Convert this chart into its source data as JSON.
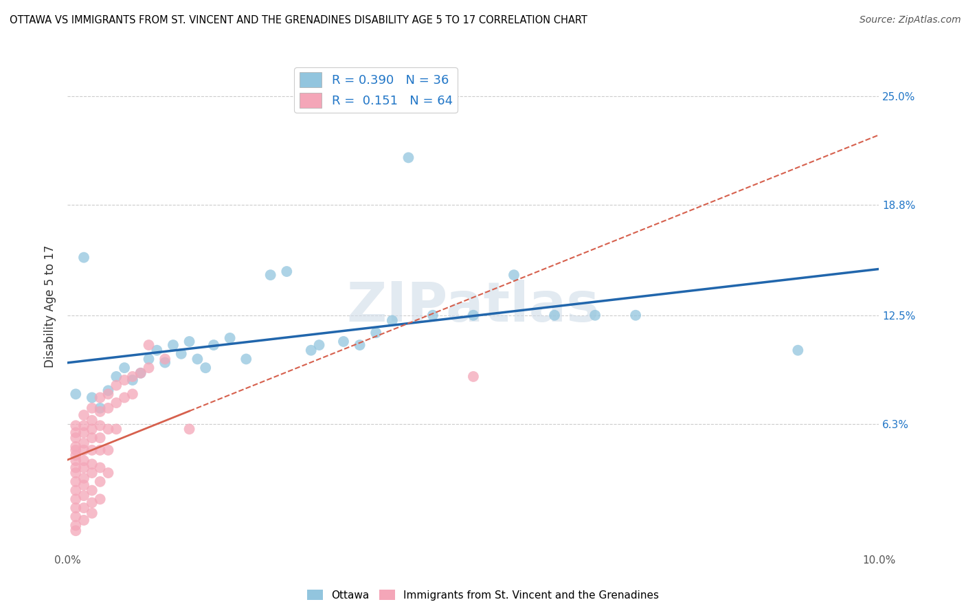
{
  "title": "OTTAWA VS IMMIGRANTS FROM ST. VINCENT AND THE GRENADINES DISABILITY AGE 5 TO 17 CORRELATION CHART",
  "source": "Source: ZipAtlas.com",
  "ylabel_label": "Disability Age 5 to 17",
  "ytick_labels": [
    "6.3%",
    "12.5%",
    "18.8%",
    "25.0%"
  ],
  "ytick_values": [
    0.063,
    0.125,
    0.188,
    0.25
  ],
  "xlim": [
    0.0,
    0.1
  ],
  "ylim": [
    -0.01,
    0.27
  ],
  "watermark": "ZIPatlas",
  "blue_color": "#92c5de",
  "pink_color": "#f4a6b8",
  "blue_line_color": "#2166ac",
  "pink_line_color": "#d6604d",
  "blue_R": 0.39,
  "blue_N": 36,
  "pink_R": 0.151,
  "pink_N": 64,
  "legend1_label": "Ottawa",
  "legend2_label": "Immigrants from St. Vincent and the Grenadines",
  "blue_points": [
    [
      0.001,
      0.08
    ],
    [
      0.003,
      0.078
    ],
    [
      0.004,
      0.072
    ],
    [
      0.005,
      0.082
    ],
    [
      0.006,
      0.09
    ],
    [
      0.007,
      0.095
    ],
    [
      0.008,
      0.088
    ],
    [
      0.009,
      0.092
    ],
    [
      0.01,
      0.1
    ],
    [
      0.011,
      0.105
    ],
    [
      0.012,
      0.098
    ],
    [
      0.013,
      0.108
    ],
    [
      0.014,
      0.103
    ],
    [
      0.015,
      0.11
    ],
    [
      0.016,
      0.1
    ],
    [
      0.017,
      0.095
    ],
    [
      0.018,
      0.108
    ],
    [
      0.02,
      0.112
    ],
    [
      0.022,
      0.1
    ],
    [
      0.025,
      0.148
    ],
    [
      0.027,
      0.15
    ],
    [
      0.03,
      0.105
    ],
    [
      0.031,
      0.108
    ],
    [
      0.034,
      0.11
    ],
    [
      0.036,
      0.108
    ],
    [
      0.038,
      0.115
    ],
    [
      0.04,
      0.122
    ],
    [
      0.042,
      0.215
    ],
    [
      0.045,
      0.125
    ],
    [
      0.05,
      0.125
    ],
    [
      0.055,
      0.148
    ],
    [
      0.06,
      0.125
    ],
    [
      0.065,
      0.125
    ],
    [
      0.07,
      0.125
    ],
    [
      0.09,
      0.105
    ],
    [
      0.002,
      0.158
    ]
  ],
  "pink_points": [
    [
      0.001,
      0.062
    ],
    [
      0.001,
      0.058
    ],
    [
      0.001,
      0.055
    ],
    [
      0.001,
      0.05
    ],
    [
      0.001,
      0.048
    ],
    [
      0.001,
      0.045
    ],
    [
      0.001,
      0.042
    ],
    [
      0.001,
      0.038
    ],
    [
      0.001,
      0.035
    ],
    [
      0.001,
      0.03
    ],
    [
      0.001,
      0.025
    ],
    [
      0.001,
      0.02
    ],
    [
      0.001,
      0.015
    ],
    [
      0.001,
      0.01
    ],
    [
      0.001,
      0.005
    ],
    [
      0.001,
      0.002
    ],
    [
      0.002,
      0.068
    ],
    [
      0.002,
      0.062
    ],
    [
      0.002,
      0.058
    ],
    [
      0.002,
      0.052
    ],
    [
      0.002,
      0.048
    ],
    [
      0.002,
      0.042
    ],
    [
      0.002,
      0.038
    ],
    [
      0.002,
      0.032
    ],
    [
      0.002,
      0.028
    ],
    [
      0.002,
      0.022
    ],
    [
      0.002,
      0.015
    ],
    [
      0.002,
      0.008
    ],
    [
      0.003,
      0.072
    ],
    [
      0.003,
      0.065
    ],
    [
      0.003,
      0.06
    ],
    [
      0.003,
      0.055
    ],
    [
      0.003,
      0.048
    ],
    [
      0.003,
      0.04
    ],
    [
      0.003,
      0.035
    ],
    [
      0.003,
      0.025
    ],
    [
      0.003,
      0.018
    ],
    [
      0.003,
      0.012
    ],
    [
      0.004,
      0.078
    ],
    [
      0.004,
      0.07
    ],
    [
      0.004,
      0.062
    ],
    [
      0.004,
      0.055
    ],
    [
      0.004,
      0.048
    ],
    [
      0.004,
      0.038
    ],
    [
      0.004,
      0.03
    ],
    [
      0.004,
      0.02
    ],
    [
      0.005,
      0.08
    ],
    [
      0.005,
      0.072
    ],
    [
      0.005,
      0.06
    ],
    [
      0.005,
      0.048
    ],
    [
      0.005,
      0.035
    ],
    [
      0.006,
      0.085
    ],
    [
      0.006,
      0.075
    ],
    [
      0.006,
      0.06
    ],
    [
      0.007,
      0.088
    ],
    [
      0.007,
      0.078
    ],
    [
      0.008,
      0.09
    ],
    [
      0.008,
      0.08
    ],
    [
      0.009,
      0.092
    ],
    [
      0.01,
      0.108
    ],
    [
      0.01,
      0.095
    ],
    [
      0.012,
      0.1
    ],
    [
      0.015,
      0.06
    ],
    [
      0.05,
      0.09
    ]
  ]
}
